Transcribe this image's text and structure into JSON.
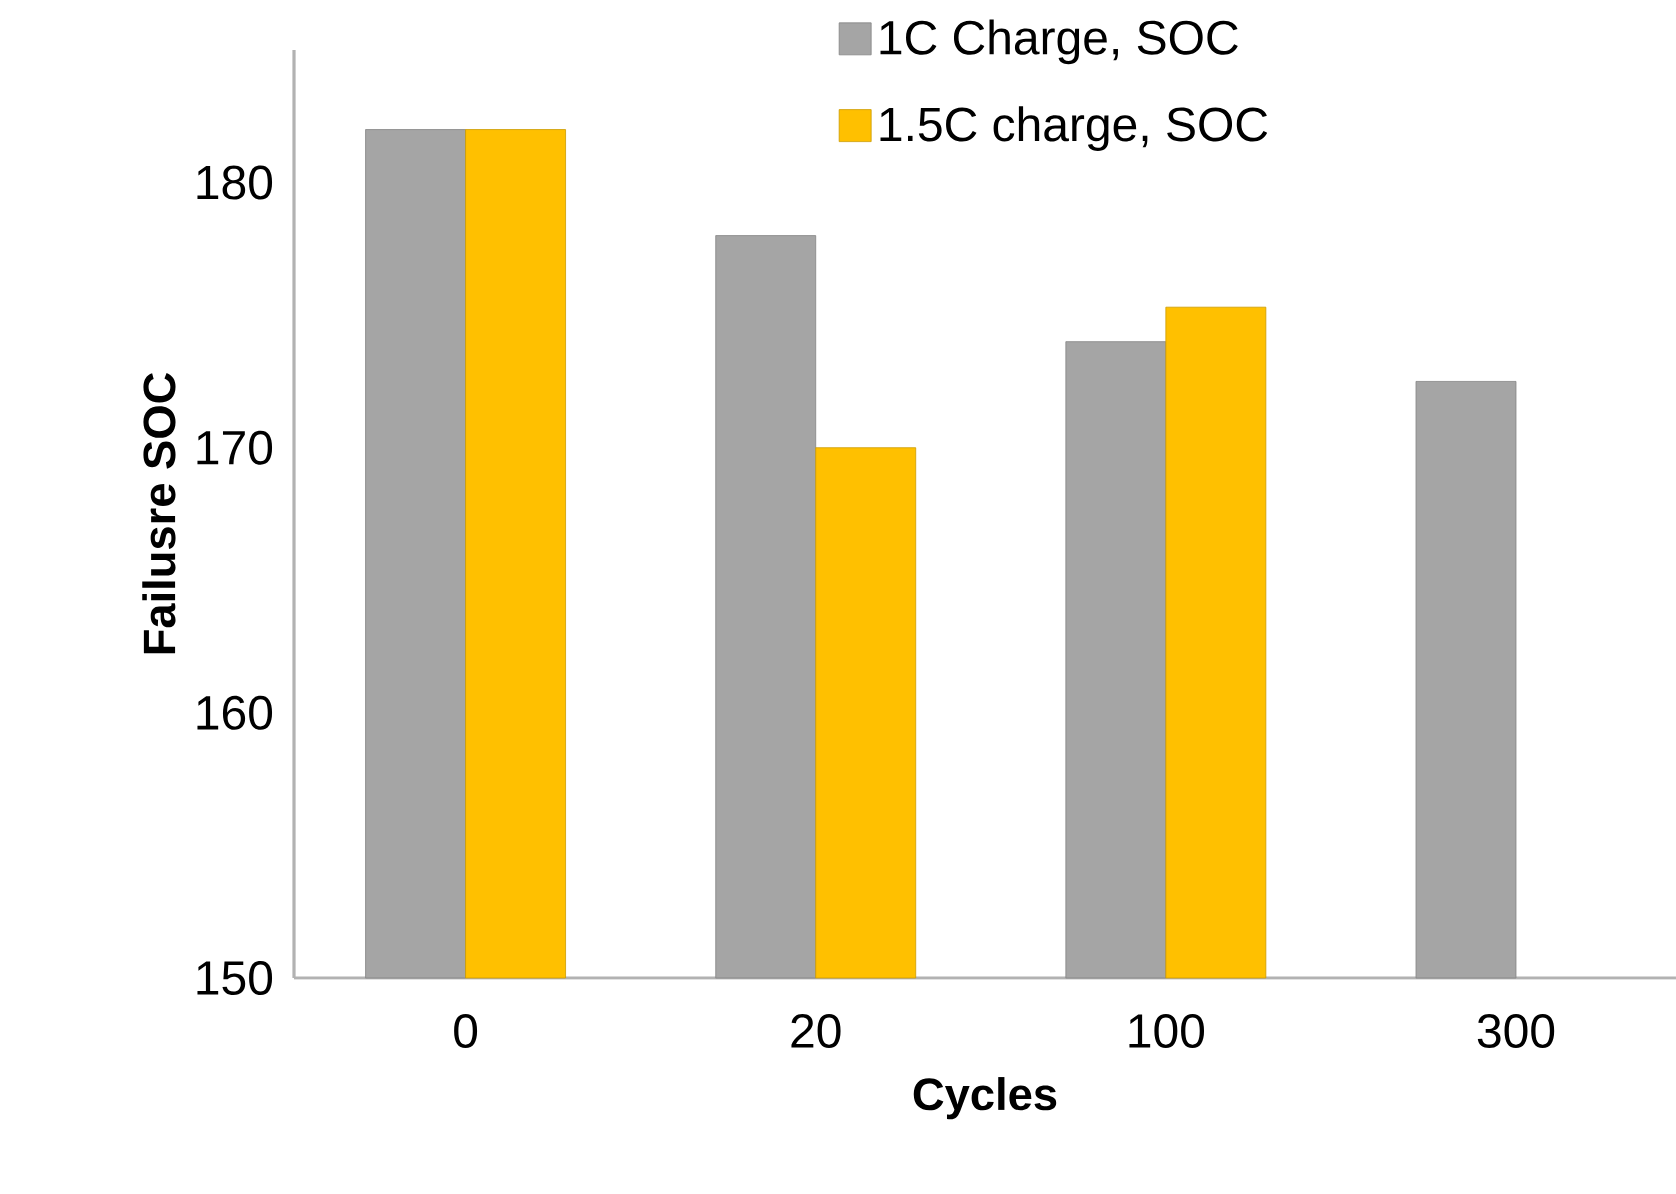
{
  "chart_data": {
    "type": "bar",
    "xlabel": "Cycles",
    "ylabel": "Failusre SOC",
    "categories": [
      "0",
      "20",
      "100",
      "300"
    ],
    "series": [
      {
        "name": "1C Charge, SOC",
        "color": "#a5a5a5",
        "values": [
          182,
          178,
          174,
          172.5
        ]
      },
      {
        "name": "1.5C charge, SOC",
        "color": "#ffc000",
        "values": [
          182,
          170,
          175.3,
          null
        ]
      }
    ],
    "ylim": [
      150,
      185
    ],
    "yticks": [
      150,
      160,
      170,
      180
    ],
    "grid": false,
    "legend": "top right"
  }
}
